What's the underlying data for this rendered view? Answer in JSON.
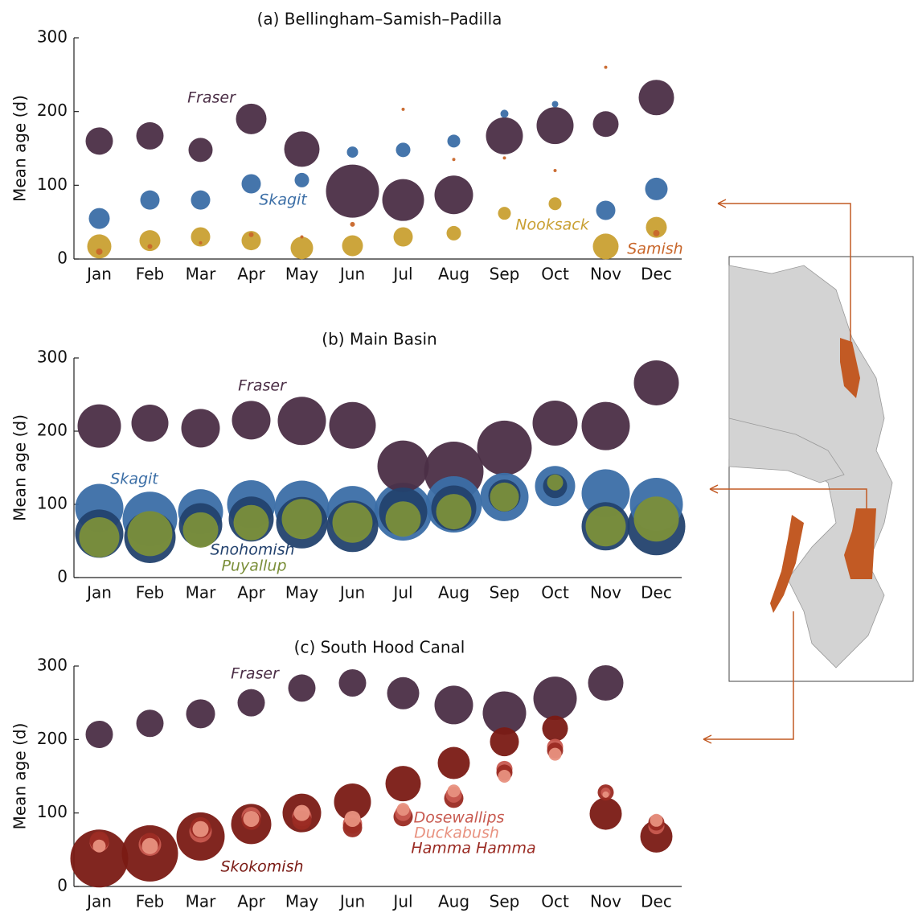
{
  "chart_data": [
    {
      "type": "scatter",
      "title": "(a) Bellingham–Samish–Padilla",
      "ylabel": "Mean age (d)",
      "categories": [
        "Jan",
        "Feb",
        "Mar",
        "Apr",
        "May",
        "Jun",
        "Jul",
        "Aug",
        "Sep",
        "Oct",
        "Nov",
        "Dec"
      ],
      "ylim": [
        0,
        300
      ],
      "yticks": [
        0,
        100,
        200,
        300
      ],
      "series": [
        {
          "name": "Fraser",
          "color": "#4b2e46",
          "values": [
            160,
            167,
            148,
            190,
            149,
            92,
            80,
            87,
            167,
            181,
            183,
            219
          ],
          "sizes": [
            17,
            17,
            15,
            19,
            22,
            33,
            26,
            24,
            23,
            23,
            16,
            22
          ]
        },
        {
          "name": "Skagit",
          "color": "#3b6ea6",
          "values": [
            55,
            80,
            80,
            102,
            107,
            145,
            148,
            160,
            197,
            210,
            66,
            95
          ],
          "sizes": [
            13,
            12,
            12,
            12,
            9,
            7,
            9,
            8,
            5,
            4,
            12,
            14
          ]
        },
        {
          "name": "Nooksack",
          "color": "#c9a032",
          "values": [
            17,
            25,
            30,
            25,
            15,
            18,
            30,
            35,
            62,
            75,
            17,
            43
          ],
          "sizes": [
            15,
            13,
            12,
            12,
            14,
            13,
            12,
            9,
            8,
            8,
            16,
            13
          ]
        },
        {
          "name": "Samish",
          "color": "#c8662a",
          "values": [
            10,
            17,
            22,
            33,
            30,
            47,
            203,
            135,
            137,
            120,
            260,
            35
          ],
          "sizes": [
            4,
            3,
            2,
            3,
            2,
            3,
            2,
            2,
            2,
            2,
            2,
            4
          ]
        }
      ]
    },
    {
      "type": "scatter",
      "title": "(b) Main Basin",
      "ylabel": "Mean age (d)",
      "categories": [
        "Jan",
        "Feb",
        "Mar",
        "Apr",
        "May",
        "Jun",
        "Jul",
        "Aug",
        "Sep",
        "Oct",
        "Nov",
        "Dec"
      ],
      "ylim": [
        0,
        300
      ],
      "yticks": [
        0,
        100,
        200,
        300
      ],
      "series": [
        {
          "name": "Fraser",
          "color": "#4b2e46",
          "values": [
            207,
            211,
            204,
            215,
            214,
            208,
            152,
            145,
            177,
            211,
            207,
            266
          ],
          "sizes": [
            27,
            23,
            24,
            24,
            30,
            29,
            32,
            37,
            34,
            28,
            30,
            28
          ]
        },
        {
          "name": "Skagit",
          "color": "#3b6ea6",
          "values": [
            95,
            80,
            90,
            100,
            95,
            90,
            90,
            100,
            110,
            125,
            115,
            100
          ],
          "sizes": [
            30,
            34,
            28,
            30,
            34,
            32,
            36,
            35,
            30,
            25,
            30,
            33
          ]
        },
        {
          "name": "Snohomish",
          "color": "#23426e",
          "values": [
            60,
            55,
            72,
            80,
            75,
            70,
            90,
            95,
            112,
            125,
            70,
            70
          ],
          "sizes": [
            30,
            32,
            27,
            28,
            32,
            32,
            30,
            28,
            20,
            15,
            30,
            36
          ]
        },
        {
          "name": "Puyallup",
          "color": "#7b8f3a",
          "values": [
            55,
            60,
            65,
            75,
            80,
            75,
            80,
            90,
            110,
            130,
            70,
            80
          ],
          "sizes": [
            25,
            28,
            22,
            22,
            25,
            25,
            22,
            22,
            18,
            10,
            25,
            28
          ]
        }
      ]
    },
    {
      "type": "scatter",
      "title": "(c) South Hood Canal",
      "ylabel": "Mean age (d)",
      "categories": [
        "Jan",
        "Feb",
        "Mar",
        "Apr",
        "May",
        "Jun",
        "Jul",
        "Aug",
        "Sep",
        "Oct",
        "Nov",
        "Dec"
      ],
      "ylim": [
        0,
        300
      ],
      "yticks": [
        0,
        100,
        200,
        300
      ],
      "series": [
        {
          "name": "Fraser",
          "color": "#4b2e46",
          "values": [
            207,
            222,
            235,
            250,
            270,
            277,
            263,
            247,
            236,
            256,
            277,
            null
          ],
          "sizes": [
            17,
            17,
            18,
            17,
            17,
            17,
            20,
            24,
            27,
            27,
            22,
            null
          ]
        },
        {
          "name": "Skokomish",
          "color": "#7a1a14",
          "values": [
            38,
            45,
            68,
            85,
            100,
            115,
            140,
            168,
            197,
            215,
            99,
            68
          ],
          "sizes": [
            36,
            35,
            30,
            25,
            24,
            23,
            22,
            20,
            18,
            16,
            20,
            20
          ]
        },
        {
          "name": "Dosewallips",
          "color": "#c85a50",
          "values": [
            60,
            57,
            75,
            95,
            95,
            85,
            100,
            125,
            160,
            190,
            128,
            82
          ],
          "sizes": [
            12,
            14,
            14,
            12,
            12,
            12,
            10,
            10,
            10,
            10,
            6,
            10
          ]
        },
        {
          "name": "Duckabush",
          "color": "#e8917f",
          "values": [
            55,
            55,
            78,
            92,
            100,
            92,
            105,
            130,
            150,
            180,
            125,
            90
          ],
          "sizes": [
            8,
            10,
            10,
            10,
            10,
            10,
            8,
            8,
            8,
            8,
            4,
            8
          ]
        },
        {
          "name": "Hamma Hamma",
          "color": "#9a2a22",
          "values": [
            62,
            60,
            80,
            90,
            90,
            80,
            95,
            120,
            155,
            185,
            128,
            87
          ],
          "sizes": [
            12,
            12,
            13,
            12,
            12,
            12,
            12,
            12,
            10,
            10,
            10,
            10
          ]
        }
      ]
    }
  ]
}
